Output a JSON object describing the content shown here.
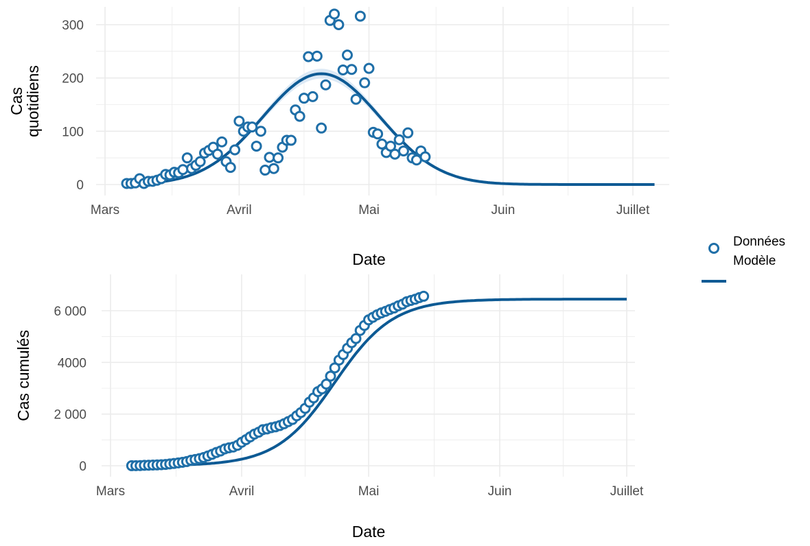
{
  "chart_data": [
    {
      "type": "scatter",
      "ylabel": "Cas quotidiens",
      "ylabel_lines": [
        "Cas",
        "quotidiens"
      ],
      "xlabel": "Date",
      "xlim": [
        "2020-03-01",
        "2020-07-06"
      ],
      "ylim": [
        0,
        330
      ],
      "x_ticks": [
        {
          "date": "2020-03-01",
          "label": "Mars"
        },
        {
          "date": "2020-04-01",
          "label": "Avril"
        },
        {
          "date": "2020-05-01",
          "label": "Mai"
        },
        {
          "date": "2020-06-01",
          "label": "Juin"
        },
        {
          "date": "2020-07-01",
          "label": "Juillet"
        }
      ],
      "y_ticks": [
        {
          "value": 0,
          "label": "0"
        },
        {
          "value": 100,
          "label": "100"
        },
        {
          "value": 200,
          "label": "200"
        },
        {
          "value": 300,
          "label": "300"
        }
      ],
      "grid": true,
      "series": [
        {
          "name": "Données",
          "kind": "points",
          "color": "#1f6fa8",
          "points": [
            [
              "2020-03-06",
              2
            ],
            [
              "2020-03-07",
              2
            ],
            [
              "2020-03-08",
              3
            ],
            [
              "2020-03-09",
              11
            ],
            [
              "2020-03-10",
              2
            ],
            [
              "2020-03-11",
              6
            ],
            [
              "2020-03-12",
              6
            ],
            [
              "2020-03-13",
              8
            ],
            [
              "2020-03-14",
              11
            ],
            [
              "2020-03-15",
              19
            ],
            [
              "2020-03-16",
              18
            ],
            [
              "2020-03-17",
              23
            ],
            [
              "2020-03-18",
              22
            ],
            [
              "2020-03-19",
              28
            ],
            [
              "2020-03-20",
              50
            ],
            [
              "2020-03-21",
              30
            ],
            [
              "2020-03-22",
              36
            ],
            [
              "2020-03-23",
              43
            ],
            [
              "2020-03-24",
              59
            ],
            [
              "2020-03-25",
              64
            ],
            [
              "2020-03-26",
              70
            ],
            [
              "2020-03-27",
              57
            ],
            [
              "2020-03-28",
              80
            ],
            [
              "2020-03-29",
              43
            ],
            [
              "2020-03-30",
              32
            ],
            [
              "2020-03-31",
              65
            ],
            [
              "2020-04-01",
              119
            ],
            [
              "2020-04-02",
              100
            ],
            [
              "2020-04-03",
              108
            ],
            [
              "2020-04-04",
              108
            ],
            [
              "2020-04-05",
              72
            ],
            [
              "2020-04-06",
              100
            ],
            [
              "2020-04-07",
              27
            ],
            [
              "2020-04-08",
              51
            ],
            [
              "2020-04-09",
              30
            ],
            [
              "2020-04-10",
              50
            ],
            [
              "2020-04-11",
              70
            ],
            [
              "2020-04-12",
              83
            ],
            [
              "2020-04-13",
              83
            ],
            [
              "2020-04-14",
              140
            ],
            [
              "2020-04-15",
              128
            ],
            [
              "2020-04-16",
              162
            ],
            [
              "2020-04-17",
              240
            ],
            [
              "2020-04-18",
              165
            ],
            [
              "2020-04-19",
              241
            ],
            [
              "2020-04-20",
              106
            ],
            [
              "2020-04-21",
              187
            ],
            [
              "2020-04-22",
              308
            ],
            [
              "2020-04-23",
              320
            ],
            [
              "2020-04-24",
              300
            ],
            [
              "2020-04-25",
              215
            ],
            [
              "2020-04-26",
              243
            ],
            [
              "2020-04-27",
              216
            ],
            [
              "2020-04-28",
              160
            ],
            [
              "2020-04-29",
              316
            ],
            [
              "2020-04-30",
              191
            ],
            [
              "2020-05-01",
              218
            ],
            [
              "2020-05-02",
              98
            ],
            [
              "2020-05-03",
              95
            ],
            [
              "2020-05-04",
              76
            ],
            [
              "2020-05-05",
              60
            ],
            [
              "2020-05-06",
              72
            ],
            [
              "2020-05-07",
              57
            ],
            [
              "2020-05-08",
              84
            ],
            [
              "2020-05-09",
              63
            ],
            [
              "2020-05-10",
              97
            ],
            [
              "2020-05-11",
              50
            ],
            [
              "2020-05-12",
              46
            ],
            [
              "2020-05-13",
              63
            ],
            [
              "2020-05-14",
              52
            ]
          ]
        },
        {
          "name": "Modèle",
          "kind": "line",
          "color": "#0d5a94",
          "band_color": "#dce9f5",
          "peak_date": "2020-04-20",
          "peak_value": 208,
          "spread_days": 13.6,
          "band_width": 8,
          "band_end": "2020-05-20"
        }
      ]
    },
    {
      "type": "scatter",
      "ylabel": "Cas cumulés",
      "xlabel": "Date",
      "xlim": [
        "2020-03-01",
        "2020-07-01"
      ],
      "ylim": [
        0,
        6800
      ],
      "x_ticks": [
        {
          "date": "2020-03-01",
          "label": "Mars"
        },
        {
          "date": "2020-04-01",
          "label": "Avril"
        },
        {
          "date": "2020-05-01",
          "label": "Mai"
        },
        {
          "date": "2020-06-01",
          "label": "Juin"
        },
        {
          "date": "2020-07-01",
          "label": "Juillet"
        }
      ],
      "y_ticks": [
        {
          "value": 0,
          "label": "0"
        },
        {
          "value": 2000,
          "label": "2 000"
        },
        {
          "value": 4000,
          "label": "4000"
        },
        {
          "value": 6000,
          "label": "6 000"
        }
      ],
      "grid": true,
      "series": [
        {
          "name": "Données",
          "kind": "points",
          "color": "#1f6fa8",
          "cumulative_of": "daily",
          "first_date": "2020-03-06",
          "last_date": "2020-05-14"
        },
        {
          "name": "Modèle",
          "kind": "line",
          "color": "#0d5a94",
          "final_value": 6450
        }
      ]
    }
  ],
  "legend": {
    "position": "right",
    "items": [
      {
        "label": "Données",
        "shape": "circle",
        "color": "#1f6fa8"
      },
      {
        "label": "Modèle",
        "shape": "line",
        "color": "#0d5a94"
      }
    ]
  }
}
